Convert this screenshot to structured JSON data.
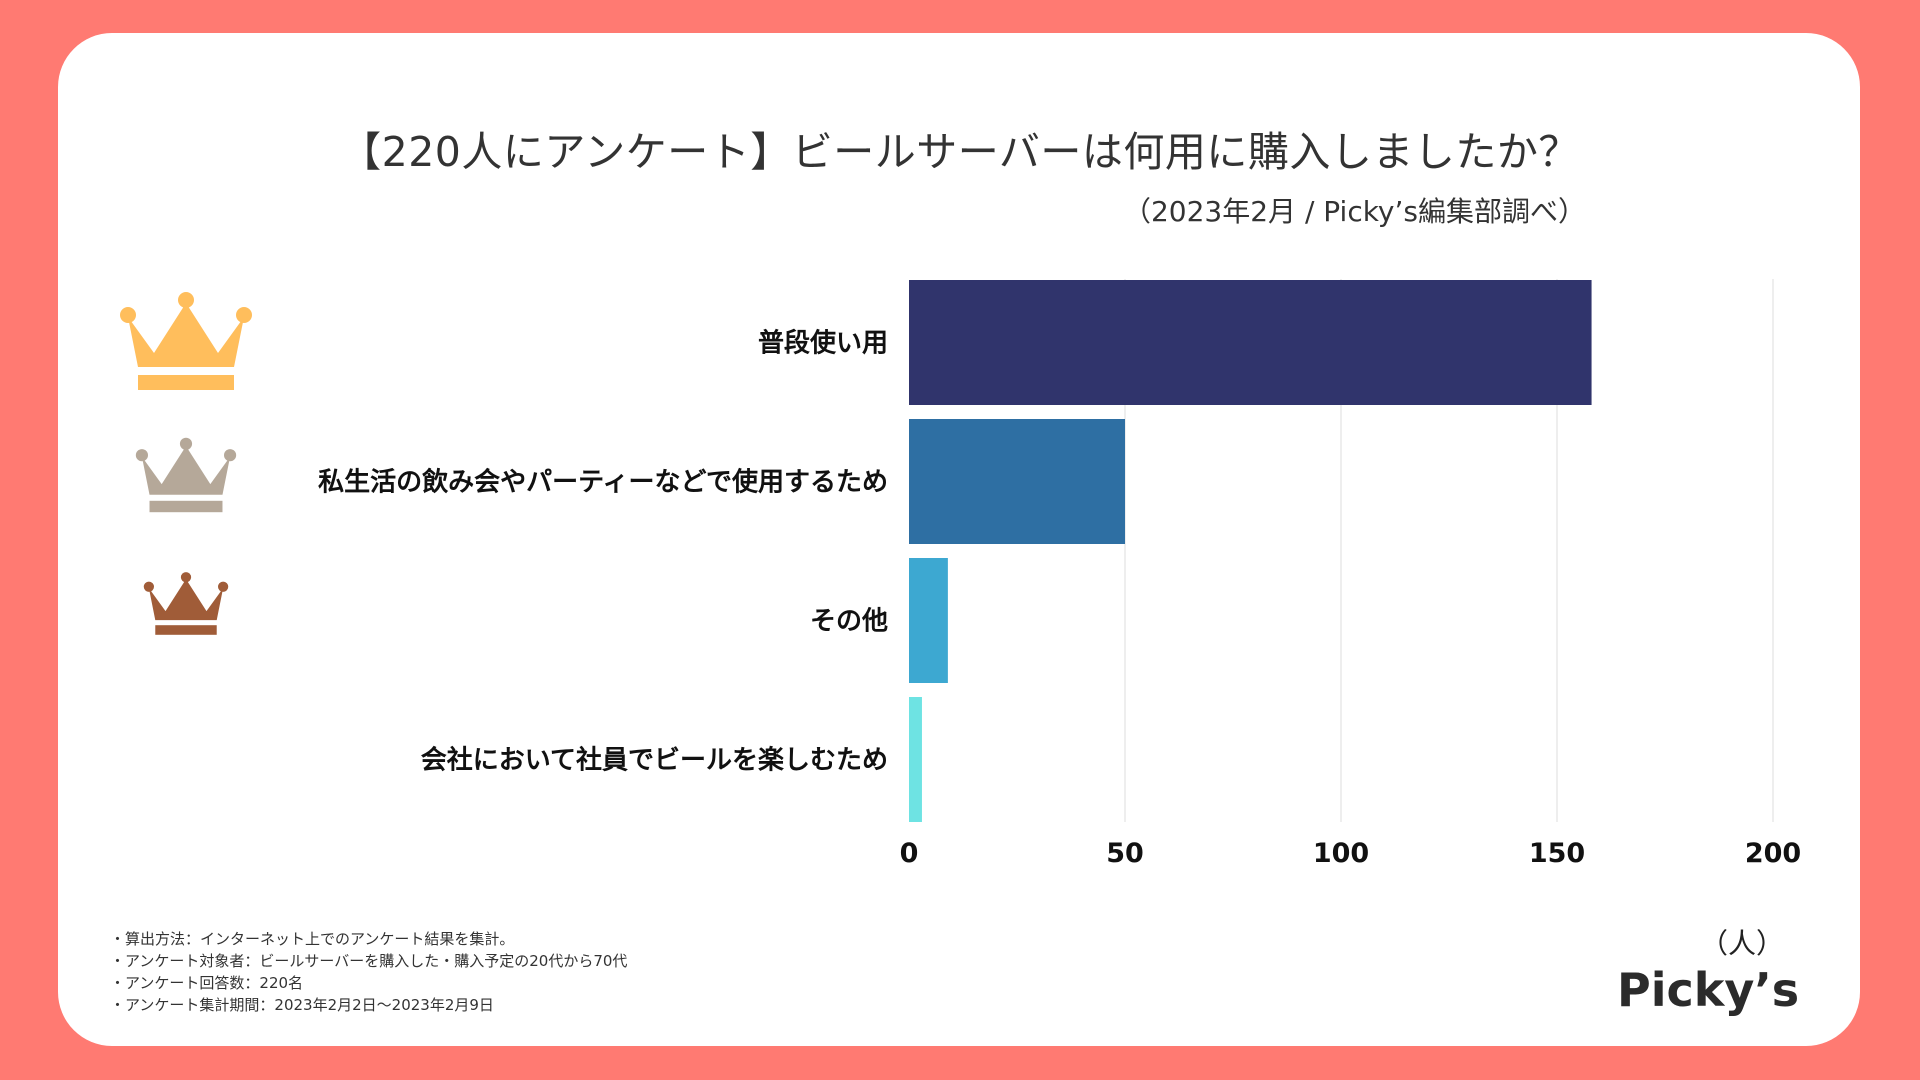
{
  "title": "【220人にアンケート】ビールサーバーは何用に購入しましたか？",
  "subtitle": "（2023年2月 / Picky’s編集部調べ）",
  "unit_label": "（人）",
  "logo_text": "Picky’s",
  "notes": [
    "・算出方法：インターネット上でのアンケート結果を集計。",
    "・アンケート対象者：ビールサーバーを購入した・購入予定の20代から70代",
    "・アンケート回答数：220名",
    "・アンケート集計期間：2023年2月2日〜2023年2月9日"
  ],
  "crowns": [
    {
      "name": "gold-crown-icon",
      "color": "#FFBE5C"
    },
    {
      "name": "silver-crown-icon",
      "color": "#B5A899"
    },
    {
      "name": "bronze-crown-icon",
      "color": "#A05C38"
    }
  ],
  "chart_data": {
    "type": "bar",
    "orientation": "horizontal",
    "title": "【220人にアンケート】ビールサーバーは何用に購入しましたか？",
    "xlabel": "（人）",
    "ylabel": "",
    "xlim": [
      0,
      200
    ],
    "ticks": [
      0,
      50,
      100,
      150,
      200
    ],
    "grid": true,
    "categories": [
      "普段使い用",
      "私生活の飲み会やパーティーなどで使用するため",
      "その他",
      "会社において社員でビールを楽しむため"
    ],
    "values": [
      158,
      50,
      9,
      3
    ],
    "colors": [
      "#30346C",
      "#2E6FA3",
      "#3DA8D1",
      "#6EE3E3"
    ]
  }
}
